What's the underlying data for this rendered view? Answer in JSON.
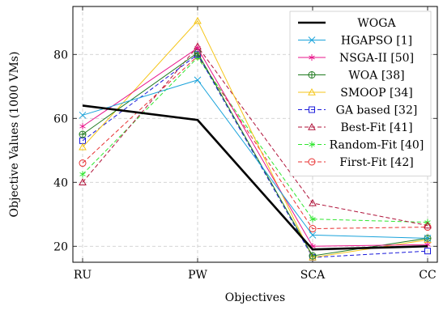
{
  "chart_data": {
    "type": "line",
    "title": "",
    "xlabel": "Objectives",
    "ylabel": "Objective Values (1000 VMs)",
    "categories": [
      "RU",
      "PW",
      "SCA",
      "CC"
    ],
    "ylim": [
      15,
      95
    ],
    "yticks": [
      20,
      40,
      60,
      80
    ],
    "grid": true,
    "legend_position": "top-right",
    "series": [
      {
        "name": "WOGA",
        "values": [
          64,
          59.5,
          19,
          20
        ],
        "color": "#000000",
        "dash": "solid",
        "marker": "none",
        "width": "thick"
      },
      {
        "name": "HGAPSO [1]",
        "values": [
          61,
          72,
          23.5,
          22.5
        ],
        "color": "#1aa3db",
        "dash": "solid",
        "marker": "x"
      },
      {
        "name": "NSGA-II [50]",
        "values": [
          57.5,
          82,
          20,
          20.5
        ],
        "color": "#e8168b",
        "dash": "solid",
        "marker": "star"
      },
      {
        "name": "WOA [38]",
        "values": [
          55,
          80.5,
          17,
          22.5
        ],
        "color": "#1f7a1f",
        "dash": "solid",
        "marker": "circle-plus"
      },
      {
        "name": "SMOOP [34]",
        "values": [
          51,
          90.5,
          16.5,
          22
        ],
        "color": "#f5c518",
        "dash": "solid",
        "marker": "triangle"
      },
      {
        "name": "GA based [32]",
        "values": [
          53,
          80,
          16.5,
          18.5
        ],
        "color": "#1a1adb",
        "dash": "dashed",
        "marker": "square"
      },
      {
        "name": "Best-Fit [41]",
        "values": [
          40,
          82.5,
          33.5,
          26.5
        ],
        "color": "#b0133a",
        "dash": "dashed",
        "marker": "triangle"
      },
      {
        "name": "Random-Fit [40]",
        "values": [
          42.5,
          79,
          28.5,
          27.5
        ],
        "color": "#2ee62e",
        "dash": "dashed",
        "marker": "star"
      },
      {
        "name": "First-Fit [42]",
        "values": [
          46,
          79.5,
          25.5,
          26
        ],
        "color": "#e83030",
        "dash": "dashed",
        "marker": "circle"
      }
    ]
  }
}
